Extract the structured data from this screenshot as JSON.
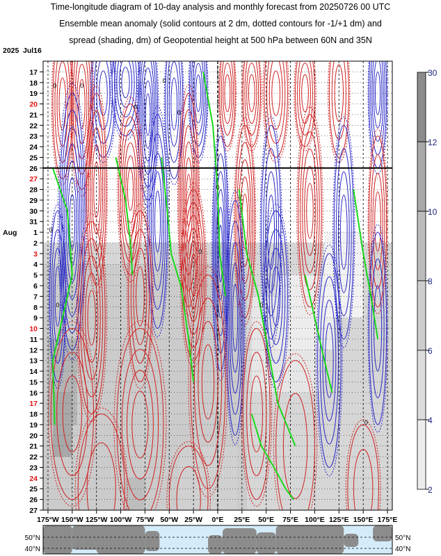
{
  "chart_data": {
    "type": "heatmap",
    "title_lines": [
      "Time-longitude diagram of 10-day analysis and monthly forecast from 20250726 00 UTC",
      "Ensemble mean anomaly (solid contours at 2 dm, dotted contours for -1/+1 dm) and",
      "spread (shading, dm) of Geopotential height at 500 hPa between 60N and 35N"
    ],
    "year_label": "2025",
    "month_labels": [
      {
        "text": "Jul16",
        "row": 0
      },
      {
        "text": "Aug",
        "row": 16
      }
    ],
    "day_labels": [
      {
        "text": "17",
        "red": false
      },
      {
        "text": "18",
        "red": false
      },
      {
        "text": "19",
        "red": false
      },
      {
        "text": "20",
        "red": true
      },
      {
        "text": "21",
        "red": false
      },
      {
        "text": "22",
        "red": false
      },
      {
        "text": "23",
        "red": false
      },
      {
        "text": "24",
        "red": false
      },
      {
        "text": "25",
        "red": false
      },
      {
        "text": "26",
        "red": false
      },
      {
        "text": "27",
        "red": true
      },
      {
        "text": "28",
        "red": false
      },
      {
        "text": "29",
        "red": false
      },
      {
        "text": "30",
        "red": false
      },
      {
        "text": "31",
        "red": false
      },
      {
        "text": "1",
        "red": false
      },
      {
        "text": "2",
        "red": false
      },
      {
        "text": "3",
        "red": true
      },
      {
        "text": "4",
        "red": false
      },
      {
        "text": "5",
        "red": false
      },
      {
        "text": "6",
        "red": false
      },
      {
        "text": "7",
        "red": false
      },
      {
        "text": "8",
        "red": false
      },
      {
        "text": "9",
        "red": false
      },
      {
        "text": "10",
        "red": true
      },
      {
        "text": "11",
        "red": false
      },
      {
        "text": "12",
        "red": false
      },
      {
        "text": "13",
        "red": false
      },
      {
        "text": "14",
        "red": false
      },
      {
        "text": "15",
        "red": false
      },
      {
        "text": "16",
        "red": false
      },
      {
        "text": "17",
        "red": true
      },
      {
        "text": "18",
        "red": false
      },
      {
        "text": "19",
        "red": false
      },
      {
        "text": "20",
        "red": false
      },
      {
        "text": "21",
        "red": false
      },
      {
        "text": "22",
        "red": false
      },
      {
        "text": "23",
        "red": false
      },
      {
        "text": "24",
        "red": true
      },
      {
        "text": "25",
        "red": false
      },
      {
        "text": "26",
        "red": false
      },
      {
        "text": "27",
        "red": false
      }
    ],
    "forecast_start_row": 10,
    "x_ticks": [
      {
        "lon": -175,
        "text": "175°W"
      },
      {
        "lon": -150,
        "text": "150°W"
      },
      {
        "lon": -125,
        "text": "125°W"
      },
      {
        "lon": -100,
        "text": "100°W"
      },
      {
        "lon": -75,
        "text": "75°W"
      },
      {
        "lon": -50,
        "text": "50°W"
      },
      {
        "lon": -25,
        "text": "25°W"
      },
      {
        "lon": 0,
        "text": "0°E"
      },
      {
        "lon": 25,
        "text": "25°E"
      },
      {
        "lon": 50,
        "text": "50°E"
      },
      {
        "lon": 75,
        "text": "75°E"
      },
      {
        "lon": 100,
        "text": "100°E"
      },
      {
        "lon": 125,
        "text": "125°E"
      },
      {
        "lon": 150,
        "text": "150°E"
      },
      {
        "lon": 175,
        "text": "175°E"
      }
    ],
    "xlim": [
      -180,
      180
    ],
    "colorbar_ticks": [
      "30",
      "12",
      "10",
      "8",
      "6",
      "4",
      "2"
    ],
    "map_lat_labels": [
      "50°N",
      "40°N"
    ],
    "contour_label": "0",
    "colors": {
      "positive": "#d02020",
      "negative": "#2828c8",
      "zero": "#18d818",
      "land": "#8c8c8c",
      "ocean": "#d4ecfa"
    }
  }
}
